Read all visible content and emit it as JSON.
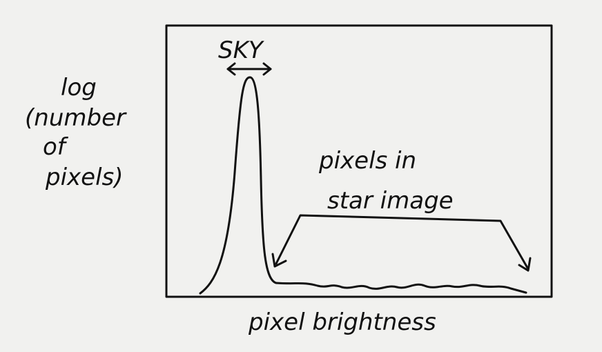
{
  "axes": {
    "y_label": [
      "log",
      "(number",
      "of",
      "pixels)"
    ],
    "x_label": "pixel brightness"
  },
  "annotations": {
    "sky": "SKY",
    "star": [
      "pixels in",
      "star image"
    ]
  }
}
